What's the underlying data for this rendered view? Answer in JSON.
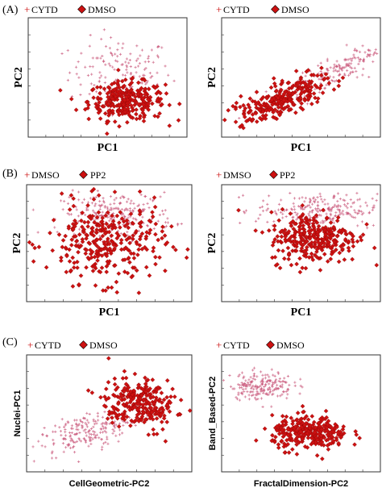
{
  "colors": {
    "cross": "#c9587a",
    "diamond": "#cc1111",
    "axis": "#333333"
  },
  "panels": [
    {
      "label": "(A)",
      "legend": [
        "CYTD",
        "DMSO"
      ]
    },
    {
      "label": "(B)",
      "legend": [
        "DMSO",
        "PP2"
      ]
    },
    {
      "label": "(C)",
      "legend": [
        "CYTD",
        "DMSO"
      ]
    }
  ],
  "chart_data": [
    {
      "type": "scatter",
      "panel": "(A)",
      "xlabel": "PC1",
      "ylabel": "PC2",
      "xlim": [
        0,
        1
      ],
      "ylim": [
        0,
        1
      ],
      "series": [
        {
          "name": "CYTD",
          "marker": "cross",
          "n": 140,
          "center": [
            0.58,
            0.55
          ],
          "spread": [
            0.16,
            0.14
          ],
          "tilt": 0
        },
        {
          "name": "DMSO",
          "marker": "diamond",
          "n": 300,
          "center": [
            0.62,
            0.3
          ],
          "spread": [
            0.12,
            0.08
          ],
          "tilt": 0
        }
      ]
    },
    {
      "type": "scatter",
      "panel": "(A)",
      "xlabel": "PC1",
      "ylabel": "PC2",
      "xlim": [
        0,
        1
      ],
      "ylim": [
        0,
        1
      ],
      "series": [
        {
          "name": "CYTD",
          "marker": "cross",
          "n": 170,
          "center": [
            0.72,
            0.55
          ],
          "spread": [
            0.05,
            0.18
          ],
          "tilt": -55
        },
        {
          "name": "DMSO",
          "marker": "diamond",
          "n": 270,
          "center": [
            0.38,
            0.32
          ],
          "spread": [
            0.06,
            0.18
          ],
          "tilt": -60
        }
      ]
    },
    {
      "type": "scatter",
      "panel": "(B)",
      "xlabel": "PC1",
      "ylabel": "PC2",
      "xlim": [
        0,
        1
      ],
      "ylim": [
        0,
        1
      ],
      "series": [
        {
          "name": "DMSO",
          "marker": "cross",
          "n": 220,
          "center": [
            0.55,
            0.75
          ],
          "spread": [
            0.17,
            0.09
          ],
          "tilt": 0
        },
        {
          "name": "PP2",
          "marker": "diamond",
          "n": 320,
          "center": [
            0.48,
            0.5
          ],
          "spread": [
            0.18,
            0.17
          ],
          "tilt": 0
        }
      ]
    },
    {
      "type": "scatter",
      "panel": "(B)",
      "xlabel": "PC1",
      "ylabel": "PC2",
      "xlim": [
        0,
        1
      ],
      "ylim": [
        0,
        1
      ],
      "series": [
        {
          "name": "DMSO",
          "marker": "cross",
          "n": 230,
          "center": [
            0.6,
            0.78
          ],
          "spread": [
            0.19,
            0.07
          ],
          "tilt": 0
        },
        {
          "name": "PP2",
          "marker": "diamond",
          "n": 300,
          "center": [
            0.58,
            0.55
          ],
          "spread": [
            0.14,
            0.11
          ],
          "tilt": 0
        }
      ]
    },
    {
      "type": "scatter",
      "panel": "(C)",
      "xlabel": "CellGeometric-PC2",
      "ylabel": "Nuclei-PC1",
      "xlim": [
        0,
        1
      ],
      "ylim": [
        0,
        1
      ],
      "series": [
        {
          "name": "CYTD",
          "marker": "cross",
          "n": 200,
          "center": [
            0.36,
            0.34
          ],
          "spread": [
            0.14,
            0.07
          ],
          "tilt": 25
        },
        {
          "name": "DMSO",
          "marker": "diamond",
          "n": 270,
          "center": [
            0.68,
            0.58
          ],
          "spread": [
            0.1,
            0.12
          ],
          "tilt": 30
        }
      ]
    },
    {
      "type": "scatter",
      "panel": "(C)",
      "xlabel": "FractalDimension-PC2",
      "ylabel": "Band_Based-PC2",
      "xlim": [
        0,
        1
      ],
      "ylim": [
        0,
        1
      ],
      "series": [
        {
          "name": "CYTD",
          "marker": "cross",
          "n": 190,
          "center": [
            0.25,
            0.74
          ],
          "spread": [
            0.1,
            0.06
          ],
          "tilt": 0
        },
        {
          "name": "DMSO",
          "marker": "diamond",
          "n": 300,
          "center": [
            0.56,
            0.33
          ],
          "spread": [
            0.12,
            0.07
          ],
          "tilt": 0
        }
      ]
    }
  ]
}
